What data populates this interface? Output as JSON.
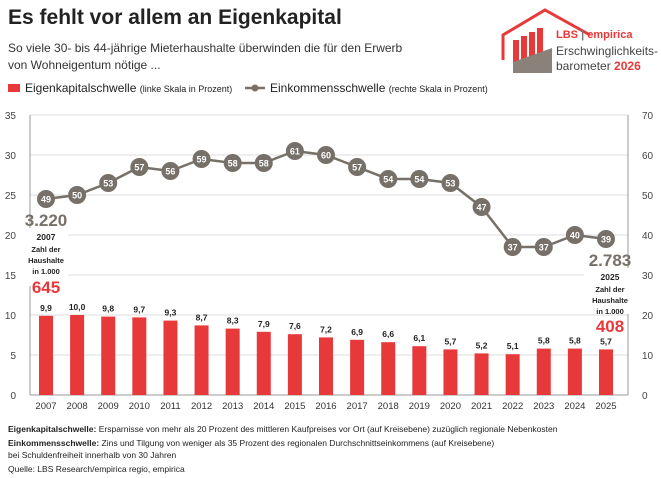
{
  "title": "Es fehlt vor allem an Eigenkapital",
  "subtitle": [
    "So viele 30- bis 44-jährige Mieterhaushalte überwinden die für den Erwerb",
    "von Wohneigentum nötige ..."
  ],
  "logo": {
    "brand1": "LBS",
    "sep": "|",
    "brand2": "empirica",
    "line1": "Erschwinglichkeits-",
    "line2": "barometer",
    "year": "2026"
  },
  "legend": [
    {
      "label": "Eigenkapitalschwelle",
      "note": "(linke Skala in Prozent)"
    },
    {
      "label": "Einkommensschwelle",
      "note": "(rechte Skala in Prozent)"
    }
  ],
  "annotations": {
    "start": {
      "total": "3.220",
      "year": "2007",
      "l1": "Zahl der",
      "l2": "Haushalte",
      "l3": "in 1.000",
      "value": "645"
    },
    "end": {
      "total": "2.783",
      "year": "2025",
      "l1": "Zahl der",
      "l2": "Haushalte",
      "l3": "in 1.000",
      "value": "408"
    }
  },
  "footnotes": {
    "ek_label": "Eigenkapitalschwelle:",
    "ek_text": "Ersparnisse von mehr als 20 Prozent des mittleren Kaufpreises vor Ort (auf Kreisebene) zuzüglich regionale Nebenkosten",
    "ein_label": "Einkommensschwelle:",
    "ein_text": "Zins und Tilgung von weniger als 35 Prozent des regionalen Durchschnittseinkommens (auf Kreisebene)",
    "ein_text2": "bei Schuldenfreiheit innerhalb von 30 Jahren",
    "source": "Quelle: LBS Research/empirica regio, empirica"
  },
  "colors": {
    "bar": "#e8393a",
    "line": "#777069",
    "accent": "#e8393a",
    "grid": "#dddddd"
  },
  "chart_data": {
    "type": "bar+line",
    "categories": [
      "2007",
      "2008",
      "2009",
      "2010",
      "2011",
      "2012",
      "2013",
      "2014",
      "2015",
      "2016",
      "2017",
      "2018",
      "2019",
      "2020",
      "2021",
      "2022",
      "2023",
      "2024",
      "2025"
    ],
    "series": [
      {
        "name": "Eigenkapitalschwelle",
        "type": "bar",
        "axis": "left",
        "values": [
          9.9,
          10.0,
          9.8,
          9.7,
          9.3,
          8.7,
          8.3,
          7.9,
          7.6,
          7.2,
          6.9,
          6.6,
          6.1,
          5.7,
          5.2,
          5.1,
          5.8,
          5.8,
          5.7
        ],
        "labels": [
          "9,9",
          "10,0",
          "9,8",
          "9,7",
          "9,3",
          "8,7",
          "8,3",
          "7,9",
          "7,6",
          "7,2",
          "6,9",
          "6,6",
          "6,1",
          "5,7",
          "5,2",
          "5,1",
          "5,8",
          "5,8",
          "5,7"
        ]
      },
      {
        "name": "Einkommensschwelle",
        "type": "line",
        "axis": "right",
        "values": [
          49,
          50,
          53,
          57,
          56,
          59,
          58,
          58,
          61,
          60,
          57,
          54,
          54,
          53,
          47,
          37,
          37,
          40,
          39
        ]
      }
    ],
    "y_left": {
      "range": [
        0,
        35
      ],
      "ticks": [
        "0",
        "5",
        "10",
        "15",
        "20",
        "25",
        "30",
        "35"
      ]
    },
    "y_right": {
      "range": [
        0,
        70
      ],
      "ticks": [
        "0",
        "10",
        "20",
        "30",
        "40",
        "50",
        "60",
        "70"
      ]
    },
    "grid": true,
    "legend_position": "top"
  }
}
